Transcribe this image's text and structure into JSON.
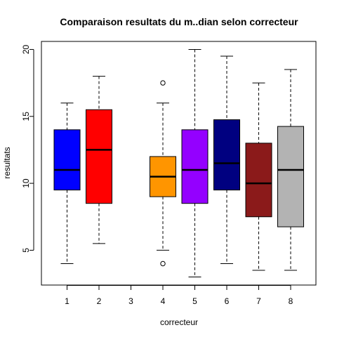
{
  "chart_data": {
    "type": "boxplot",
    "title": "Comparaison resultats du m..dian selon correcteur",
    "xlabel": "correcteur",
    "ylabel": "resultats",
    "categories": [
      "1",
      "2",
      "3",
      "4",
      "5",
      "6",
      "7",
      "8"
    ],
    "ylim": [
      2.4,
      20.6
    ],
    "yticks": [
      5,
      10,
      15,
      20
    ],
    "grid": false,
    "boxes": [
      {
        "category": "1",
        "whisker_low": 4,
        "q1": 9.5,
        "median": 11,
        "q3": 14,
        "whisker_high": 16,
        "outliers": [],
        "color": "#0000ff"
      },
      {
        "category": "2",
        "whisker_low": 5.5,
        "q1": 8.5,
        "median": 12.5,
        "q3": 15.5,
        "whisker_high": 18,
        "outliers": [],
        "color": "#ff0000"
      },
      {
        "category": "3",
        "whisker_low": null,
        "q1": null,
        "median": null,
        "q3": null,
        "whisker_high": null,
        "outliers": [],
        "color": null
      },
      {
        "category": "4",
        "whisker_low": 5,
        "q1": 9,
        "median": 10.5,
        "q3": 12,
        "whisker_high": 16,
        "outliers": [
          4,
          17.5
        ],
        "color": "#ff9500"
      },
      {
        "category": "5",
        "whisker_low": 3,
        "q1": 8.5,
        "median": 11,
        "q3": 14,
        "whisker_high": 20,
        "outliers": [],
        "color": "#9400ff"
      },
      {
        "category": "6",
        "whisker_low": 4,
        "q1": 9.5,
        "median": 11.5,
        "q3": 14.75,
        "whisker_high": 19.5,
        "outliers": [],
        "color": "#000080"
      },
      {
        "category": "7",
        "whisker_low": 3.5,
        "q1": 7.5,
        "median": 10,
        "q3": 13,
        "whisker_high": 17.5,
        "outliers": [],
        "color": "#8b1a1a"
      },
      {
        "category": "8",
        "whisker_low": 3.5,
        "q1": 6.75,
        "median": 11,
        "q3": 14.25,
        "whisker_high": 18.5,
        "outliers": [],
        "color": "#b3b3b3"
      }
    ]
  }
}
